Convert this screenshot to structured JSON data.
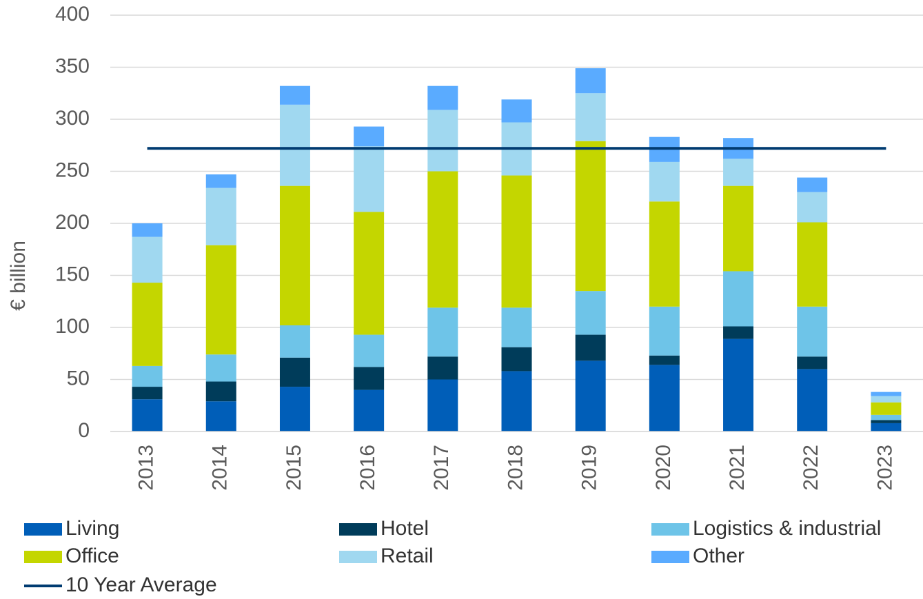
{
  "chart_data": {
    "type": "bar",
    "stacked": true,
    "ylabel": "€ billion",
    "categories": [
      "2013",
      "2014",
      "2015",
      "2016",
      "2017",
      "2018",
      "2019",
      "2020",
      "2021",
      "2022",
      "2023"
    ],
    "series": [
      {
        "name": "Living",
        "color": "#005eb8",
        "values": [
          31,
          29,
          43,
          40,
          50,
          58,
          68,
          64,
          89,
          60,
          8
        ]
      },
      {
        "name": "Hotel",
        "color": "#003c5a",
        "values": [
          12,
          19,
          28,
          22,
          22,
          23,
          25,
          9,
          12,
          12,
          3
        ]
      },
      {
        "name": "Logistics & industrial",
        "color": "#6ec4e8",
        "values": [
          20,
          26,
          31,
          31,
          47,
          38,
          42,
          47,
          53,
          48,
          5
        ]
      },
      {
        "name": "Office",
        "color": "#c4d600",
        "values": [
          80,
          105,
          134,
          118,
          131,
          127,
          144,
          101,
          82,
          81,
          12
        ]
      },
      {
        "name": "Retail",
        "color": "#a0d8f0",
        "values": [
          44,
          55,
          78,
          63,
          59,
          51,
          46,
          38,
          26,
          29,
          6
        ]
      },
      {
        "name": "Other",
        "color": "#5aabff",
        "values": [
          13,
          13,
          18,
          19,
          23,
          22,
          24,
          24,
          20,
          14,
          4
        ]
      }
    ],
    "average": {
      "name": "10 Year Average",
      "color": "#003b71",
      "value": 272
    },
    "ylim": [
      0,
      400
    ],
    "yticks": [
      0,
      50,
      100,
      150,
      200,
      250,
      300,
      350,
      400
    ],
    "grid": true
  }
}
